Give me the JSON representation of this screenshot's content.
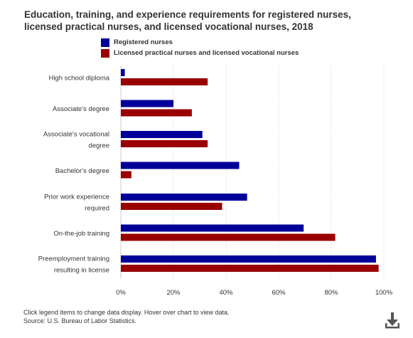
{
  "title_line1": "Education, training, and experience requirements for registered nurses,",
  "title_line2": "licensed practical nurses, and licensed vocational nurses, 2018",
  "legend": [
    {
      "name": "Registered nurses",
      "color": "#000099"
    },
    {
      "name": "Licensed practical nurses and licensed vocational nurses",
      "color": "#990000"
    }
  ],
  "footer": {
    "note": "Click legend items to change data display. Hover over chart to view data.",
    "source": "Source: U.S. Bureau of Labor Statistics."
  },
  "download_icon": "download-icon",
  "chart_data": {
    "type": "bar",
    "orientation": "horizontal",
    "categories": [
      [
        "High school diploma"
      ],
      [
        "Associate's degree"
      ],
      [
        "Associate's vocational",
        "degree"
      ],
      [
        "Bachelor's degree"
      ],
      [
        "Prior work experience",
        "required"
      ],
      [
        "On-the-job training"
      ],
      [
        "Preemployment training",
        "resulting in license"
      ]
    ],
    "series": [
      {
        "name": "Registered nurses",
        "color": "#000099",
        "values": [
          1.5,
          20,
          31,
          45,
          48,
          69.5,
          97
        ]
      },
      {
        "name": "Licensed practical nurses and licensed vocational nurses",
        "color": "#990000",
        "values": [
          33,
          27,
          33,
          4,
          38.5,
          81.5,
          98
        ]
      }
    ],
    "xlim": [
      0,
      100
    ],
    "xticks": [
      "0%",
      "20%",
      "40%",
      "60%",
      "80%",
      "100%"
    ],
    "grid": true,
    "legend_position": "top"
  }
}
